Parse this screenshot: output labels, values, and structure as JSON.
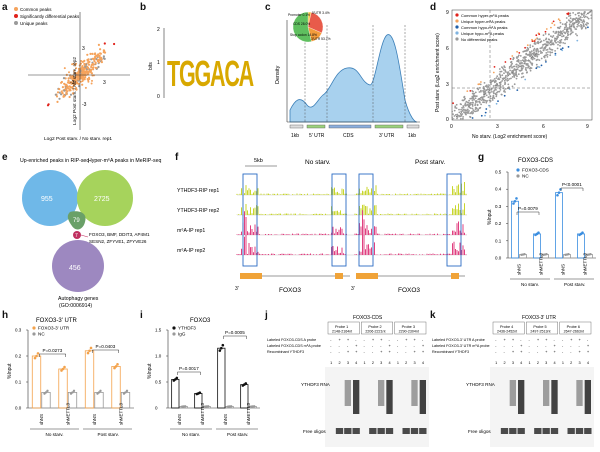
{
  "figure": {
    "panel_letters": [
      "a",
      "b",
      "c",
      "d",
      "e",
      "f",
      "g",
      "h",
      "i",
      "j",
      "k"
    ]
  },
  "panel_a": {
    "legend": [
      "Common peaks",
      "Significantly differential peaks",
      "Unique peaks"
    ],
    "ylabel": "Log2  Post starv. / No starv.  rep2",
    "xlabel": "Log2  Post starv. / No starv.  rep1",
    "tick_m3": "-3",
    "tick_3": "3",
    "colors": {
      "common": "#f5a35c",
      "sig": "#e0221b",
      "unique": "#9a9a9a"
    }
  },
  "panel_b": {
    "motif": "TGGACA",
    "ylabel": "bits",
    "ticks": [
      "2",
      "1",
      "0"
    ]
  },
  "panel_c": {
    "ylabel": "Density",
    "regions": [
      "1kb",
      "5' UTR",
      "CDS",
      "3' UTR",
      "1kb"
    ],
    "pie_labels": [
      "Promoter 0.1%",
      "5'UTR 3.4%",
      "CDS 28.0%",
      "Stop codon 14.8%",
      "3'UTR 53.7%"
    ]
  },
  "panel_d": {
    "legend": [
      "Common hyper-m⁶A peaks",
      "Unique hyper-m⁶A peaks",
      "Common hypo-m⁶A peaks",
      "Unique hypo-m⁶A peaks",
      "No differential peaks"
    ],
    "xlabel": "No starv. (Log2 enrichment score)",
    "ylabel": "Post starv. (Log2 enrichment score)",
    "xticks": [
      "0",
      "3",
      "6",
      "9"
    ],
    "yticks": [
      "0",
      "3",
      "6",
      "9"
    ]
  },
  "panel_e": {
    "label_left": "Up-enriched peaks in RIP-seq",
    "label_right": "Hyper-m⁶A peaks in MeRIP-seq",
    "n_left": "955",
    "n_right": "2725",
    "n_center": "79",
    "n_mid": "7",
    "n_bottom": "456",
    "genes_line1": "FOXO3, BMF, DDIT3, AP4M1",
    "genes_line2": "SESN2, ZFYVE1, ZFYVE26",
    "label_bottom_1": "Autophagy genes",
    "label_bottom_2": "(GO:0006914)"
  },
  "panel_f": {
    "scale": "5kb",
    "cond_left": "No starv.",
    "cond_right": "Post starv.",
    "tracks": [
      "YTHDF3-RIP rep1",
      "YTHDF3-RIP rep2",
      "m⁶A-IP rep1",
      "m⁶A-IP rep2"
    ],
    "gene": "FOXO3",
    "three_prime": "3'"
  },
  "panel_g": {
    "title": "FOXO3-CDS",
    "legend": [
      "FOXO3-CDS",
      "NC"
    ],
    "ylabel": "%Input",
    "yticks": [
      "0.0",
      "0.1",
      "0.2",
      "0.3",
      "0.4",
      "0.5"
    ],
    "groups": [
      "shNS",
      "shMETTL3",
      "shNS",
      "shMETTL3"
    ],
    "conditions": [
      "No starv.",
      "Post starv."
    ],
    "pvals": [
      "P=0.0079",
      "P<0.0001"
    ]
  },
  "panel_h": {
    "title": "FOXO3-3' UTR",
    "legend": [
      "FOXO3-3' UTR",
      "NC"
    ],
    "ylabel": "%Input",
    "yticks": [
      "0.0",
      "0.1",
      "0.2",
      "0.3"
    ],
    "groups": [
      "shNS",
      "shMETTL3",
      "shNS",
      "shMETTL3"
    ],
    "conditions": [
      "No starv.",
      "Post starv."
    ],
    "pvals": [
      "P=0.0273",
      "P=0.0403"
    ]
  },
  "panel_i": {
    "title": "FOXO3",
    "legend": [
      "YTHDF3",
      "IgG"
    ],
    "ylabel": "%Input",
    "yticks": [
      "0",
      "0.5",
      "1.0",
      "1.5"
    ],
    "groups": [
      "shNS",
      "shMETTL3",
      "shNS",
      "shMETTL3"
    ],
    "conditions": [
      "No starv.",
      "Post starv."
    ],
    "pvals": [
      "P=0.0017",
      "P=0.0005"
    ]
  },
  "panel_j": {
    "title": "FOXO3-CDS",
    "probes": [
      {
        "name": "Probe 1",
        "range": "2148-2164nt"
      },
      {
        "name": "Probe 2",
        "range": "2206-2221nt"
      },
      {
        "name": "Probe 3",
        "range": "2290-2304nt"
      }
    ],
    "row_labels": [
      "Labeled FOXO3-CDS A probe",
      "Labeled FOXO3-CDS m⁶A probe",
      "Recombinant YTHDF3"
    ],
    "row_values": [
      [
        "-",
        "+",
        "+",
        "-",
        "-",
        "+",
        "+",
        "-",
        "-",
        "+",
        "+",
        "-"
      ],
      [
        "-",
        "-",
        "-",
        "+",
        "-",
        "-",
        "-",
        "+",
        "-",
        "-",
        "-",
        "+"
      ],
      [
        "-",
        "-",
        "+",
        "+",
        "-",
        "-",
        "+",
        "+",
        "-",
        "-",
        "+",
        "+"
      ]
    ],
    "lanes": [
      "1",
      "2",
      "3",
      "4",
      "1",
      "2",
      "3",
      "4",
      "1",
      "2",
      "3",
      "4"
    ],
    "band_label": "YTHDF3 RNA",
    "free_label": "Free oligos"
  },
  "panel_k": {
    "title": "FOXO3-3' UTR",
    "probes": [
      {
        "name": "Probe 4",
        "range": "2436-2452nt"
      },
      {
        "name": "Probe 5",
        "range": "2497-2513nt"
      },
      {
        "name": "Probe 6",
        "range": "2647-2663nt"
      }
    ],
    "row_labels": [
      "Labeled FOXO3-3' UTR A probe",
      "Labeled FOXO3-3' UTR m⁶A probe",
      "Recombinant YTHDF3"
    ],
    "row_values": [
      [
        "-",
        "+",
        "+",
        "-",
        "-",
        "+",
        "+",
        "-",
        "-",
        "+",
        "+",
        "-"
      ],
      [
        "-",
        "-",
        "-",
        "+",
        "-",
        "-",
        "-",
        "+",
        "-",
        "-",
        "-",
        "+"
      ],
      [
        "-",
        "-",
        "+",
        "+",
        "-",
        "-",
        "+",
        "+",
        "-",
        "-",
        "+",
        "+"
      ]
    ],
    "lanes": [
      "1",
      "2",
      "3",
      "4",
      "1",
      "2",
      "3",
      "4",
      "1",
      "2",
      "3",
      "4"
    ],
    "band_label": "YTHDF3 RNA",
    "free_label": "Free oligos"
  }
}
